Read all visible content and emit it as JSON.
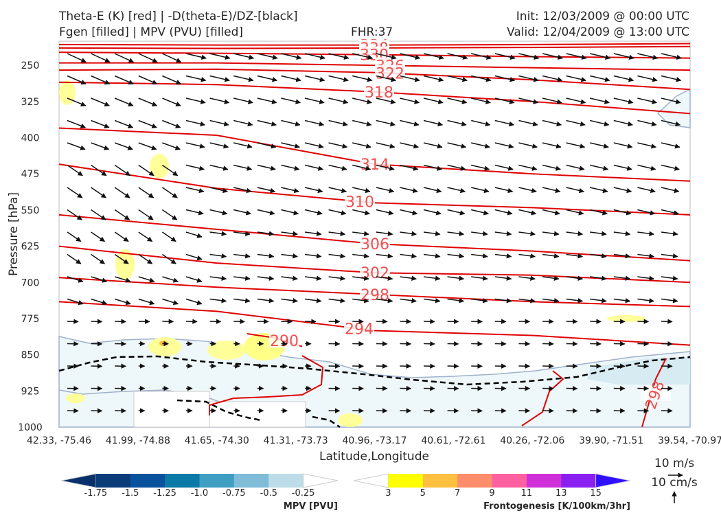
{
  "header": {
    "title_line1": "Theta-E (K) [red] | -D(theta-E)/DZ-[black]",
    "title_line2": "Fgen [filled] | MPV (PVU) [filled]",
    "fhr": "FHR:37",
    "init": "Init: 12/03/2009 @ 00:00 UTC",
    "valid": "Valid: 12/04/2009 @ 13:00 UTC"
  },
  "chart_data": {
    "type": "cross-section",
    "xlabel": "Latitude,Longitude",
    "ylabel": "Pressure [hPa]",
    "x_ticks": [
      "42.33, -75.46",
      "41.99, -74.88",
      "41.65, -74.30",
      "41.31, -73.73",
      "40.96, -73.17",
      "40.61, -72.61",
      "40.26, -72.06",
      "39.90, -71.51",
      "39.54, -70.97"
    ],
    "y_ticks": [
      250,
      325,
      400,
      475,
      550,
      625,
      700,
      775,
      850,
      925,
      1000
    ],
    "ylim": [
      1000,
      200
    ],
    "y_scale": "linear-inverted",
    "contour_color": "#e00000",
    "theta_e_contours": [
      {
        "label": "334",
        "p": [
          207,
          208,
          208,
          207,
          205
        ]
      },
      {
        "label": "338",
        "p": [
          214,
          215,
          214,
          213,
          211
        ]
      },
      {
        "label": "330",
        "p": [
          223,
          225,
          228,
          232,
          235
        ]
      },
      {
        "label": "326",
        "p": [
          245,
          245,
          250,
          255,
          260
        ]
      },
      {
        "label": "322",
        "p": [
          260,
          258,
          265,
          280,
          300
        ]
      },
      {
        "label": "318",
        "p": [
          285,
          290,
          305,
          325,
          350
        ]
      },
      {
        "label": "314",
        "p": [
          380,
          395,
          455,
          475,
          490
        ]
      },
      {
        "label": "310",
        "p": [
          455,
          505,
          535,
          545,
          560
        ]
      },
      {
        "label": "306",
        "p": [
          560,
          590,
          620,
          635,
          655
        ]
      },
      {
        "label": "302",
        "p": [
          625,
          660,
          680,
          685,
          700
        ]
      },
      {
        "label": "298",
        "p": [
          690,
          710,
          725,
          740,
          750
        ]
      },
      {
        "label": "294",
        "p": [
          740,
          760,
          800,
          810,
          830
        ]
      },
      {
        "label": "290",
        "p": [
          815,
          830
        ]
      },
      {
        "label": "298",
        "p": [
          900,
          960
        ]
      }
    ],
    "wind_barb_note": "10 m/s",
    "vertical_note": "10 cm/s",
    "mpv_colorbar": {
      "label": "MPV [PVU]",
      "ticks": [
        "-1.75",
        "-1.5",
        "-1.25",
        "-1.0",
        "-0.75",
        "-0.5",
        "-0.25"
      ],
      "colors": [
        "#08306b",
        "#0b3c7a",
        "#08519c",
        "#0b7aa6",
        "#3f9fc2",
        "#7fbcd8",
        "#bcdde8",
        "#ffffff"
      ]
    },
    "fgen_colorbar": {
      "label": "Frontogenesis [K/100km/3hr]",
      "ticks": [
        "3",
        "5",
        "7",
        "9",
        "11",
        "13",
        "15"
      ],
      "colors": [
        "#ffffff",
        "#ffff00",
        "#ffc040",
        "#ff8c6a",
        "#ff60a0",
        "#d030d8",
        "#8a20f0",
        "#3010ff"
      ]
    }
  }
}
